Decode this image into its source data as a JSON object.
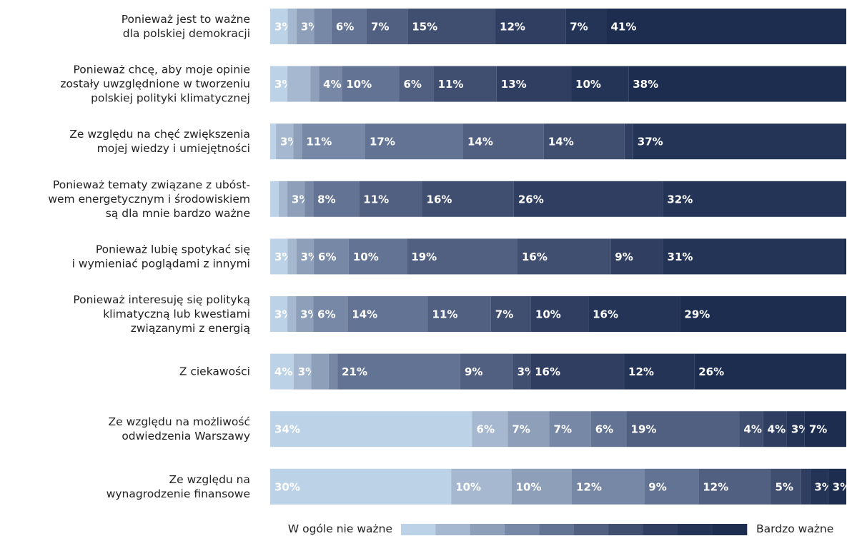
{
  "chart_data": {
    "type": "bar",
    "orientation": "horizontal",
    "stacked": true,
    "normalized": true,
    "title": "",
    "xlabel": "",
    "ylabel": "",
    "categories": [
      "Ponieważ jest to ważne\ndla polskiej demokracji",
      "Ponieważ chcę, aby moje opinie\nzostały uwzględnione w tworzeniu\npolskiej polityki klimatycznej",
      "Ze względu na chęć zwiększenia\nmojej wiedzy i umiejętności",
      "Ponieważ tematy związane z ubóst-\nwem energetycznym i środowiskiem\nsą dla mnie bardzo ważne",
      "Ponieważ lubię spotykać się\ni wymieniać poglądami z innymi",
      "Ponieważ interesuję się polityką\nklimatyczną lub kwestiami\nzwiązanymi z energią",
      "Z ciekawości",
      "Ze względu na możliwość\nodwiedzenia Warszawy",
      "Ze względu na\nwynagrodzenie finansowe"
    ],
    "scale_points": 10,
    "colors": [
      "#bcd2e6",
      "#a5b8cf",
      "#8d9fb9",
      "#7788a6",
      "#637393",
      "#515f81",
      "#404e70",
      "#303e61",
      "#243456",
      "#1c2d50"
    ],
    "rows": [
      [
        3,
        1.5,
        3,
        3,
        6,
        7,
        15,
        12,
        7,
        41
      ],
      [
        3,
        4,
        1.5,
        4,
        10,
        6,
        11,
        13,
        10,
        38
      ],
      [
        1,
        3,
        1.5,
        11,
        17,
        14,
        14,
        1.5,
        37,
        0
      ],
      [
        1.5,
        1.5,
        3,
        1.5,
        8,
        11,
        16,
        26,
        32,
        0
      ],
      [
        3,
        1.5,
        3,
        6,
        10,
        19,
        16,
        9,
        31,
        0.5
      ],
      [
        3,
        1.5,
        3,
        6,
        14,
        11,
        7,
        10,
        16,
        29
      ],
      [
        4,
        3,
        3,
        1.5,
        21,
        9,
        3,
        16,
        12,
        26
      ],
      [
        34,
        6,
        7,
        7,
        6,
        19,
        4,
        4,
        3,
        7
      ],
      [
        30,
        10,
        10,
        12,
        9,
        12,
        5,
        1.5,
        3,
        3
      ]
    ],
    "labels": [
      [
        "3%",
        "",
        "3%",
        "",
        "6%",
        "7%",
        "15%",
        "12%",
        "7%",
        "41%"
      ],
      [
        "3%",
        "",
        "",
        "4%",
        "10%",
        "6%",
        "11%",
        "13%",
        "10%",
        "38%"
      ],
      [
        "",
        "3%",
        "",
        "11%",
        "17%",
        "14%",
        "14%",
        "",
        "37%",
        ""
      ],
      [
        "",
        "",
        "3%",
        "",
        "8%",
        "11%",
        "16%",
        "26%",
        "32%",
        ""
      ],
      [
        "3%",
        "",
        "3%",
        "6%",
        "10%",
        "19%",
        "16%",
        "9%",
        "31%",
        ""
      ],
      [
        "3%",
        "",
        "3%",
        "6%",
        "14%",
        "11%",
        "7%",
        "10%",
        "16%",
        "29%"
      ],
      [
        "4%",
        "3%",
        "",
        "",
        "21%",
        "9%",
        "3%",
        "16%",
        "12%",
        "26%"
      ],
      [
        "34%",
        "6%",
        "7%",
        "7%",
        "6%",
        "19%",
        "4%",
        "4%",
        "3%",
        "7%"
      ],
      [
        "30%",
        "10%",
        "10%",
        "12%",
        "9%",
        "12%",
        "5%",
        "",
        "3%",
        "3%"
      ]
    ],
    "legend": {
      "position": "bottom",
      "low_label": "W ogóle nie ważne",
      "high_label": "Bardzo ważne"
    }
  }
}
